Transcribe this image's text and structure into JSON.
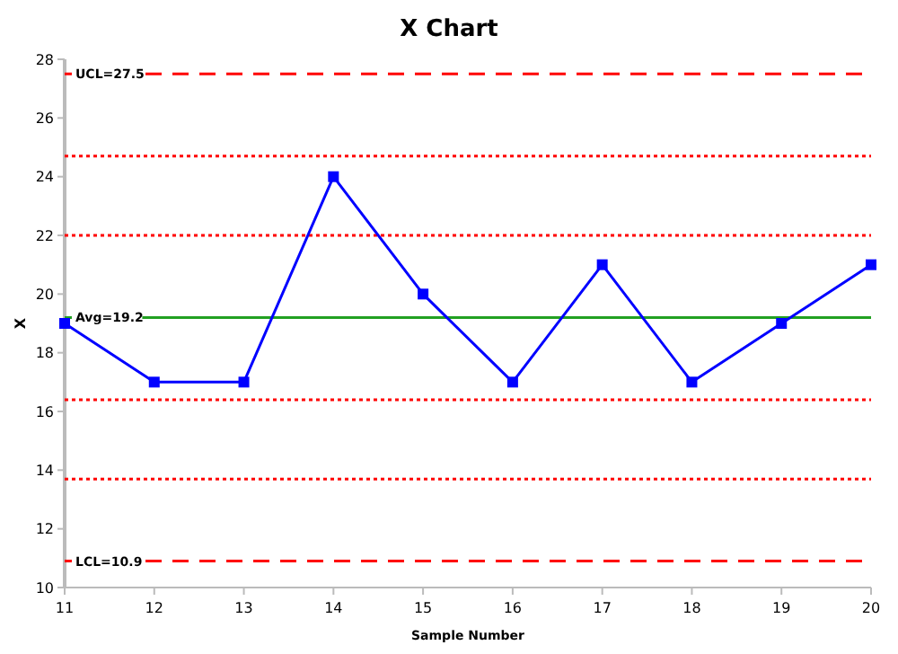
{
  "chart_data": {
    "type": "line",
    "title": "X Chart",
    "xlabel": "Sample Number",
    "ylabel": "X",
    "x": [
      11,
      12,
      13,
      14,
      15,
      16,
      17,
      18,
      19,
      20
    ],
    "series": [
      {
        "color": "#0000ff",
        "values": [
          19,
          17,
          17,
          24,
          20,
          17,
          21,
          17,
          19,
          21
        ]
      }
    ],
    "xlim": [
      11,
      20
    ],
    "xticks": [
      11,
      12,
      13,
      14,
      15,
      16,
      17,
      18,
      19,
      20
    ],
    "ylim": [
      10,
      28
    ],
    "yticks": [
      10,
      12,
      14,
      16,
      18,
      20,
      22,
      24,
      26,
      28
    ],
    "marker": "square",
    "line_style": "solid",
    "ref_lines": [
      {
        "axis": "y",
        "value": 27.5,
        "label": "UCL=27.5",
        "color": "#ff0000",
        "line_style": "dashed"
      },
      {
        "axis": "y",
        "value": 24.7,
        "color": "#ff0000",
        "line_style": "dotted"
      },
      {
        "axis": "y",
        "value": 22.0,
        "color": "#ff0000",
        "line_style": "dotted"
      },
      {
        "axis": "y",
        "value": 19.2,
        "label": "Avg=19.2",
        "color": "#22a022",
        "line_style": "solid"
      },
      {
        "axis": "y",
        "value": 16.4,
        "color": "#ff0000",
        "line_style": "dotted"
      },
      {
        "axis": "y",
        "value": 13.7,
        "color": "#ff0000",
        "line_style": "dotted"
      },
      {
        "axis": "y",
        "value": 10.9,
        "label": "LCL=10.9",
        "color": "#ff0000",
        "line_style": "dashed"
      }
    ]
  }
}
